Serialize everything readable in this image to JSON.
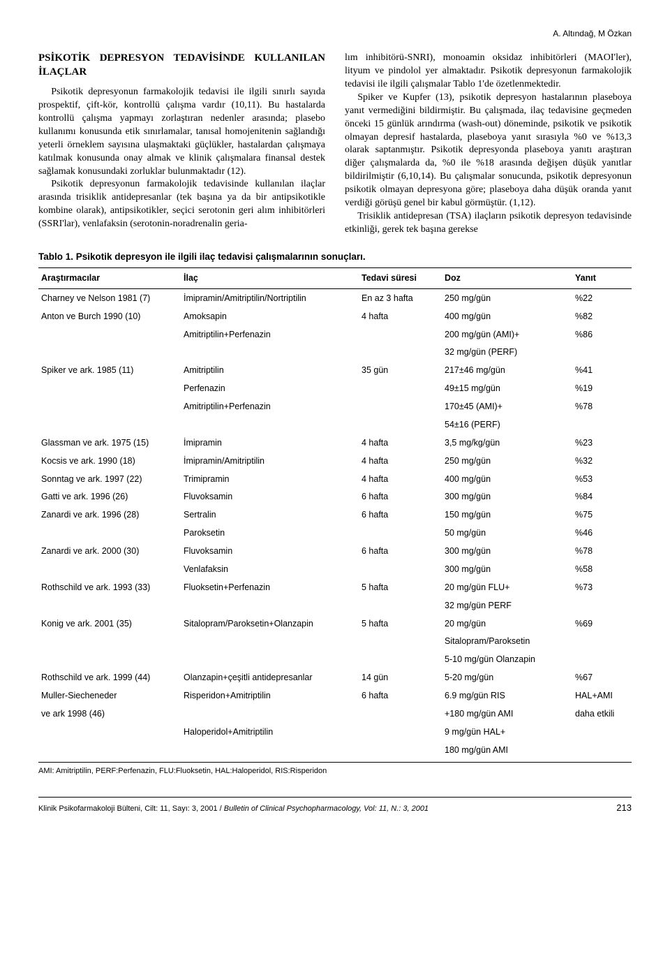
{
  "running_head": "A. Altındağ, M Özkan",
  "left_col": {
    "heading": "PSİKOTİK DEPRESYON TEDAVİSİNDE KULLANILAN İLAÇLAR",
    "p1": "Psikotik depresyonun farmakolojik tedavisi ile ilgili sınırlı sayıda prospektif, çift-kör, kontrollü çalışma vardır (10,11). Bu hastalarda kontrollü çalışma yapmayı zorlaştıran nedenler arasında; plasebo kullanımı konusunda etik sınırlamalar, tanısal homojenitenin sağlandığı yeterli örneklem sayısına ulaşmaktaki güçlükler, hastalardan çalışmaya katılmak konusunda onay almak ve klinik çalışmalara finansal destek sağlamak konusundaki zorluklar bulunmaktadır (12).",
    "p2": "Psikotik depresyonun farmakolojik tedavisinde kullanılan ilaçlar arasında trisiklik antidepresanlar (tek başına ya da bir antipsikotikle kombine olarak), antipsikotikler, seçici serotonin geri alım inhibitörleri (SSRI'lar), venlafaksin (serotonin-noradrenalin geria-"
  },
  "right_col": {
    "p1": "lım inhibitörü-SNRI), monoamin oksidaz inhibitörleri (MAOI'ler), lityum ve pindolol yer almaktadır. Psikotik depresyonun farmakolojik tedavisi ile ilgili çalışmalar Tablo 1'de özetlenmektedir.",
    "p2": "Spiker ve Kupfer (13), psikotik depresyon hastalarının plaseboya yanıt vermediğini bildirmiştir. Bu çalışmada, ilaç tedavisine geçmeden önceki 15 günlük arındırma (wash-out) döneminde, psikotik ve psikotik olmayan depresif hastalarda, plaseboya yanıt sırasıyla %0 ve %13,3 olarak saptanmıştır. Psikotik depresyonda plaseboya yanıtı araştıran diğer çalışmalarda da, %0 ile %18 arasında değişen düşük yanıtlar bildirilmiştir (6,10,14). Bu çalışmalar sonucunda, psikotik depresyonun psikotik olmayan depresyona göre; plaseboya daha düşük oranda yanıt verdiği görüşü genel bir kabul görmüştür. (1,12).",
    "p3": "Trisiklik antidepresan (TSA) ilaçların psikotik depresyon tedavisinde etkinliği, gerek tek başına gerekse"
  },
  "table": {
    "title": "Tablo 1. Psikotik depresyon ile ilgili ilaç tedavisi çalışmalarının sonuçları.",
    "columns": [
      "Araştırmacılar",
      "İlaç",
      "Tedavi süresi",
      "Doz",
      "Yanıt"
    ],
    "rows": [
      [
        "Charney ve Nelson 1981 (7)",
        "İmipramin/Amitriptilin/Nortriptilin",
        "En az 3 hafta",
        "250 mg/gün",
        "%22"
      ],
      [
        "Anton ve Burch 1990 (10)",
        "Amoksapin",
        "4 hafta",
        "400 mg/gün",
        "%82"
      ],
      [
        "",
        "Amitriptilin+Perfenazin",
        "",
        "200 mg/gün (AMI)+",
        "%86"
      ],
      [
        "",
        "",
        "",
        "32 mg/gün (PERF)",
        ""
      ],
      [
        "Spiker ve ark. 1985 (11)",
        "Amitriptilin",
        "35 gün",
        "217±46 mg/gün",
        "%41"
      ],
      [
        "",
        "Perfenazin",
        "",
        "49±15 mg/gün",
        "%19"
      ],
      [
        "",
        "Amitriptilin+Perfenazin",
        "",
        "170±45 (AMI)+",
        "%78"
      ],
      [
        "",
        "",
        "",
        "54±16 (PERF)",
        ""
      ],
      [
        "Glassman ve ark. 1975 (15)",
        "İmipramin",
        "4 hafta",
        "3,5 mg/kg/gün",
        "%23"
      ],
      [
        "Kocsis ve ark. 1990 (18)",
        "İmipramin/Amitriptilin",
        "4 hafta",
        "250 mg/gün",
        "%32"
      ],
      [
        "Sonntag ve ark. 1997 (22)",
        "Trimipramin",
        "4 hafta",
        "400 mg/gün",
        "%53"
      ],
      [
        "Gatti ve ark. 1996 (26)",
        "Fluvoksamin",
        "6 hafta",
        "300 mg/gün",
        "%84"
      ],
      [
        "Zanardi ve ark. 1996 (28)",
        "Sertralin",
        "6 hafta",
        "150 mg/gün",
        "%75"
      ],
      [
        "",
        "Paroksetin",
        "",
        "50 mg/gün",
        "%46"
      ],
      [
        "Zanardi ve ark. 2000 (30)",
        "Fluvoksamin",
        "6 hafta",
        "300 mg/gün",
        "%78"
      ],
      [
        "",
        "Venlafaksin",
        "",
        "300 mg/gün",
        "%58"
      ],
      [
        "Rothschild ve ark. 1993 (33)",
        "Fluoksetin+Perfenazin",
        "5 hafta",
        "20 mg/gün FLU+",
        "%73"
      ],
      [
        "",
        "",
        "",
        "32 mg/gün PERF",
        ""
      ],
      [
        "Konig ve ark. 2001 (35)",
        "Sitalopram/Paroksetin+Olanzapin",
        "5 hafta",
        "20 mg/gün",
        "%69"
      ],
      [
        "",
        "",
        "",
        "Sitalopram/Paroksetin",
        ""
      ],
      [
        "",
        "",
        "",
        "5-10 mg/gün Olanzapin",
        ""
      ],
      [
        "Rothschild ve ark. 1999 (44)",
        "Olanzapin+çeşitli antidepresanlar",
        "14 gün",
        "5-20 mg/gün",
        "%67"
      ],
      [
        "Muller-Siecheneder",
        "Risperidon+Amitriptilin",
        "6 hafta",
        "6.9 mg/gün RIS",
        "HAL+AMI"
      ],
      [
        "ve ark 1998 (46)",
        "",
        "",
        "+180 mg/gün AMI",
        "daha etkili"
      ],
      [
        "",
        "Haloperidol+Amitriptilin",
        "",
        "9 mg/gün HAL+",
        ""
      ],
      [
        "",
        "",
        "",
        "180 mg/gün AMI",
        ""
      ]
    ],
    "footnote": "AMI: Amitriptilin, PERF:Perfenazin, FLU:Fluoksetin, HAL:Haloperidol, RIS:Risperidon"
  },
  "footer": {
    "journal_tr": "Klinik Psikofarmakoloji Bülteni, Cilt: 11, Sayı: 3, 2001 / ",
    "journal_en": "Bulletin of Clinical Psychopharmacology, Vol: 11, N.: 3, 2001",
    "page_number": "213"
  }
}
